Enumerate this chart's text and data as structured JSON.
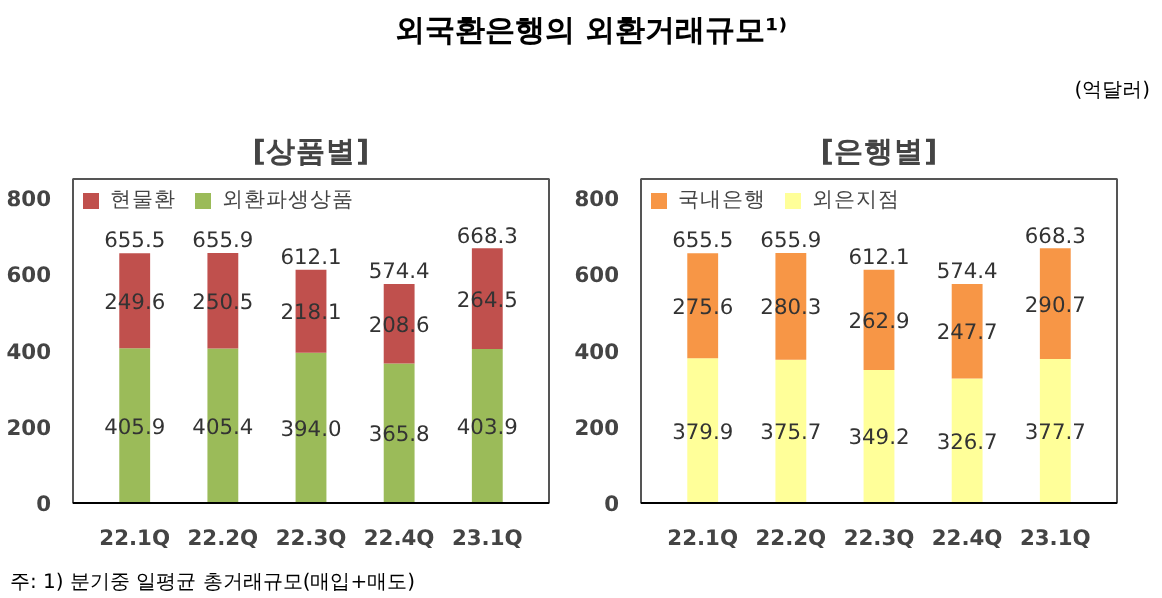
{
  "chart_data": [
    {
      "type": "bar",
      "title": "외국환은행의 외환거래규모¹⁾",
      "subtitle": "[상품별]",
      "annotations": [
        "(억달러)",
        "주: 1) 분기중 일평균 총거래규모(매입+매도)"
      ],
      "categories": [
        "22.1Q",
        "22.2Q",
        "22.3Q",
        "22.4Q",
        "23.1Q"
      ],
      "stacked": true,
      "legend": "top left",
      "grid": false,
      "ylim": [
        0,
        850
      ],
      "yticks": [
        0,
        200,
        400,
        600,
        800
      ],
      "series": [
        {
          "name": "외환파생상품",
          "color": "#9bbb59",
          "values": [
            405.9,
            405.4,
            394.0,
            365.8,
            403.9
          ],
          "value_labels": [
            "405.9",
            "405.4",
            "394.0",
            "365.8",
            "403.9"
          ]
        },
        {
          "name": "현물환",
          "color": "#c0504d",
          "values": [
            249.6,
            250.5,
            218.1,
            208.6,
            264.5
          ],
          "value_labels": [
            "249.6",
            "250.5",
            "218.1",
            "208.6",
            "264.5"
          ]
        }
      ],
      "totals": [
        "655.5",
        "655.9",
        "612.1",
        "574.4",
        "668.3"
      ]
    },
    {
      "type": "bar",
      "subtitle": "[은행별]",
      "categories": [
        "22.1Q",
        "22.2Q",
        "22.3Q",
        "22.4Q",
        "23.1Q"
      ],
      "stacked": true,
      "legend": "top left",
      "grid": false,
      "ylim": [
        0,
        850
      ],
      "yticks": [
        0,
        200,
        400,
        600,
        800
      ],
      "series": [
        {
          "name": "외은지점",
          "color": "#ffff99",
          "values": [
            379.9,
            375.7,
            349.2,
            326.7,
            377.7
          ],
          "value_labels": [
            "379.9",
            "375.7",
            "349.2",
            "326.7",
            "377.7"
          ]
        },
        {
          "name": "국내은행",
          "color": "#f79646",
          "values": [
            275.6,
            280.3,
            262.9,
            247.7,
            290.7
          ],
          "value_labels": [
            "275.6",
            "280.3",
            "262.9",
            "247.7",
            "290.7"
          ]
        }
      ],
      "totals": [
        "655.5",
        "655.9",
        "612.1",
        "574.4",
        "668.3"
      ]
    }
  ]
}
